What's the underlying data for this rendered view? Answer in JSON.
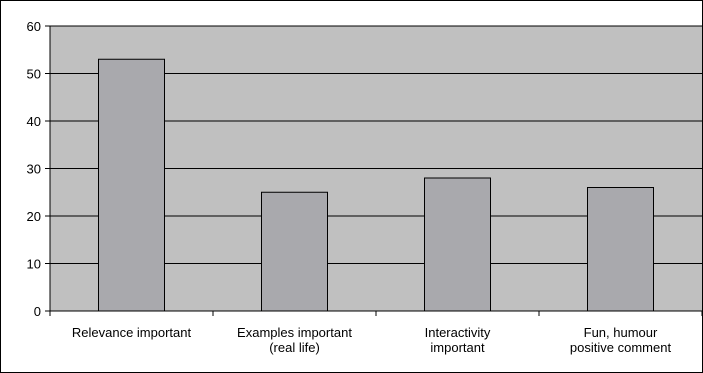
{
  "chart_data": {
    "type": "bar",
    "categories": [
      [
        "Relevance important"
      ],
      [
        "Examples important",
        "(real life)"
      ],
      [
        "Interactivity",
        "important"
      ],
      [
        "Fun, humour",
        "positive comment"
      ]
    ],
    "values": [
      53,
      25,
      28,
      26
    ],
    "title": "",
    "xlabel": "",
    "ylabel": "",
    "ylim": [
      0,
      60
    ],
    "yticks": [
      0,
      10,
      20,
      30,
      40,
      50,
      60
    ],
    "grid": true,
    "legend": "none",
    "colors": {
      "plot_background": "#c0c0c0",
      "bar_fill": "#a9a9ad",
      "bar_stroke": "#000000",
      "gridline": "#000000"
    }
  }
}
